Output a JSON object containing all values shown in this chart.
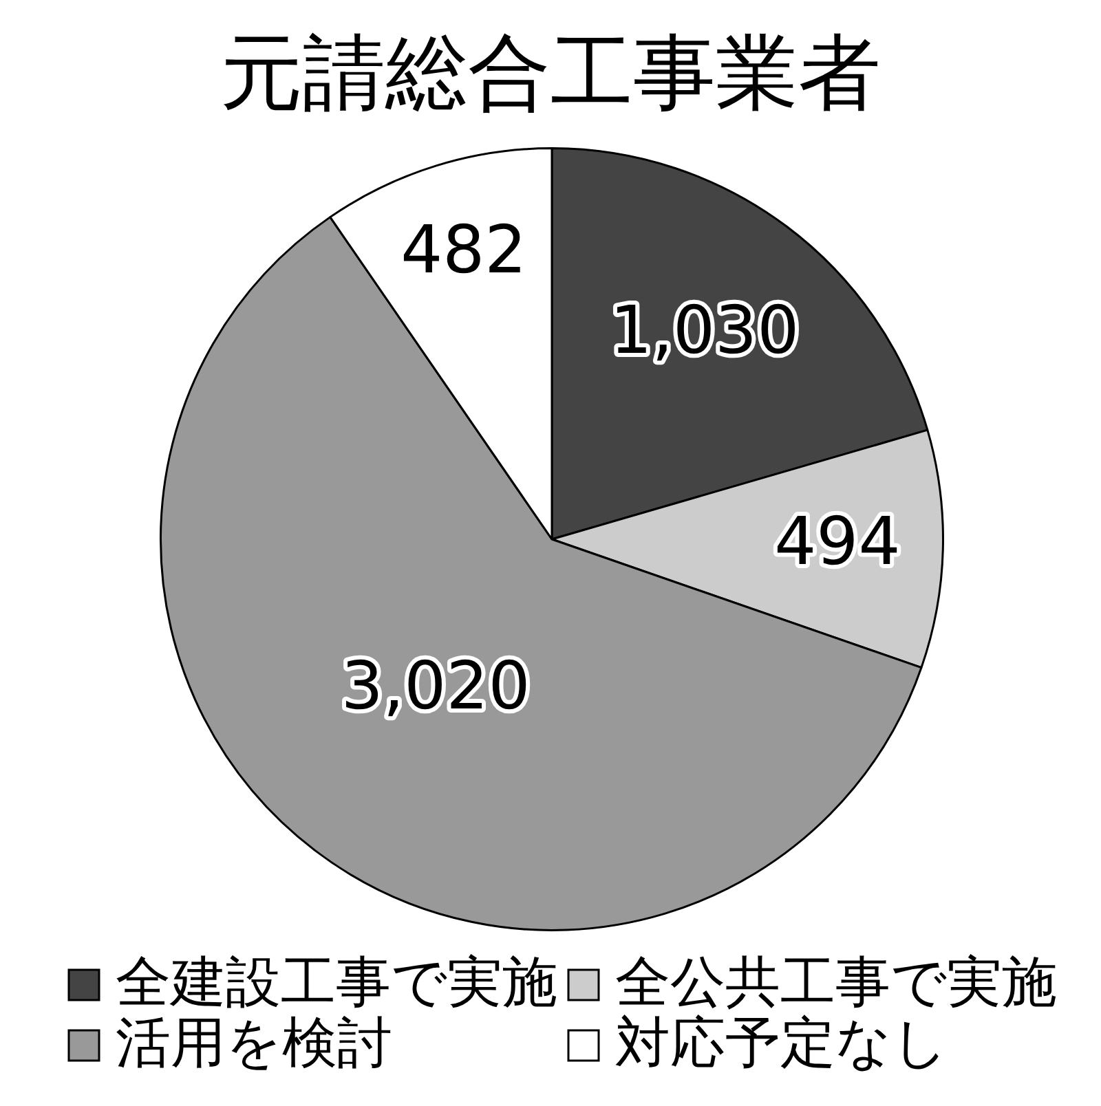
{
  "chart_data": {
    "type": "pie",
    "title": "元請総合工事業者",
    "categories": [
      "全建設工事で実施",
      "全公共工事で実施",
      "活用を検討",
      "対応予定なし"
    ],
    "values": [
      1030,
      494,
      3020,
      482
    ],
    "value_labels": [
      "1,030",
      "494",
      "3,020",
      "482"
    ],
    "colors": [
      "#444444",
      "#cccccc",
      "#999999",
      "#ffffff"
    ],
    "legend": "bottom"
  }
}
